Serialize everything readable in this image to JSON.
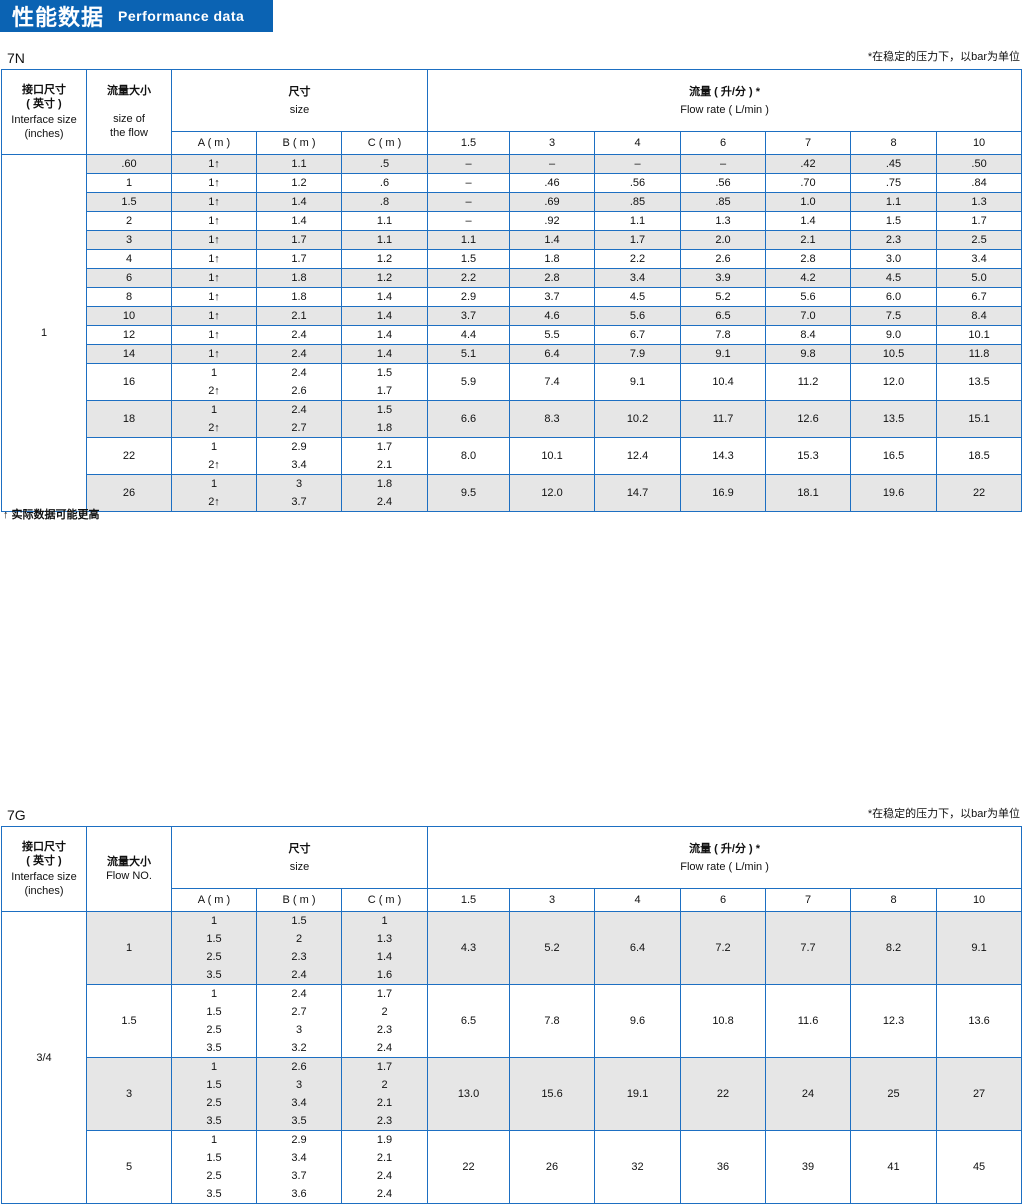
{
  "title": {
    "zh": "性能数据",
    "en": "Performance data"
  },
  "colors": {
    "accent": "#0b63b3",
    "border": "#1d6fc2",
    "stripe": "#e6e6e6"
  },
  "pressure_note": "*在稳定的压力下，以bar为单位",
  "footnote": "↑ 实际数据可能更高",
  "tables": [
    {
      "model": "7N",
      "headers": {
        "interface_zh": "接口尺寸",
        "interface_zh2": "( 英寸 )",
        "interface_en": "Interface size",
        "interface_en2": "(inches)",
        "flow_zh": "流量大小",
        "flow_en": "size of",
        "flow_en2": "the flow",
        "size_zh": "尺寸",
        "size_en": "size",
        "rate_zh": "流量 ( 升/分 ) *",
        "rate_en": "Flow rate ( L/min )",
        "dims": [
          "A ( m )",
          "B ( m )",
          "C ( m )"
        ],
        "pressures": [
          "1.5",
          "3",
          "4",
          "6",
          "7",
          "8",
          "10"
        ]
      },
      "interface": "1",
      "rows": [
        {
          "flow": ".60",
          "a": [
            "1↑"
          ],
          "b": [
            "1.1"
          ],
          "c": [
            ".5"
          ],
          "rates": [
            "–",
            "–",
            "–",
            "–",
            ".42",
            ".45",
            ".50"
          ]
        },
        {
          "flow": "1",
          "a": [
            "1↑"
          ],
          "b": [
            "1.2"
          ],
          "c": [
            ".6"
          ],
          "rates": [
            "–",
            ".46",
            ".56",
            ".56",
            ".70",
            ".75",
            ".84"
          ]
        },
        {
          "flow": "1.5",
          "a": [
            "1↑"
          ],
          "b": [
            "1.4"
          ],
          "c": [
            ".8"
          ],
          "rates": [
            "–",
            ".69",
            ".85",
            ".85",
            "1.0",
            "1.1",
            "1.3"
          ]
        },
        {
          "flow": "2",
          "a": [
            "1↑"
          ],
          "b": [
            "1.4"
          ],
          "c": [
            "1.1"
          ],
          "rates": [
            "–",
            ".92",
            "1.1",
            "1.3",
            "1.4",
            "1.5",
            "1.7"
          ]
        },
        {
          "flow": "3",
          "a": [
            "1↑"
          ],
          "b": [
            "1.7"
          ],
          "c": [
            "1.1"
          ],
          "rates": [
            "1.1",
            "1.4",
            "1.7",
            "2.0",
            "2.1",
            "2.3",
            "2.5"
          ]
        },
        {
          "flow": "4",
          "a": [
            "1↑"
          ],
          "b": [
            "1.7"
          ],
          "c": [
            "1.2"
          ],
          "rates": [
            "1.5",
            "1.8",
            "2.2",
            "2.6",
            "2.8",
            "3.0",
            "3.4"
          ]
        },
        {
          "flow": "6",
          "a": [
            "1↑"
          ],
          "b": [
            "1.8"
          ],
          "c": [
            "1.2"
          ],
          "rates": [
            "2.2",
            "2.8",
            "3.4",
            "3.9",
            "4.2",
            "4.5",
            "5.0"
          ]
        },
        {
          "flow": "8",
          "a": [
            "1↑"
          ],
          "b": [
            "1.8"
          ],
          "c": [
            "1.4"
          ],
          "rates": [
            "2.9",
            "3.7",
            "4.5",
            "5.2",
            "5.6",
            "6.0",
            "6.7"
          ]
        },
        {
          "flow": "10",
          "a": [
            "1↑"
          ],
          "b": [
            "2.1"
          ],
          "c": [
            "1.4"
          ],
          "rates": [
            "3.7",
            "4.6",
            "5.6",
            "6.5",
            "7.0",
            "7.5",
            "8.4"
          ]
        },
        {
          "flow": "12",
          "a": [
            "1↑"
          ],
          "b": [
            "2.4"
          ],
          "c": [
            "1.4"
          ],
          "rates": [
            "4.4",
            "5.5",
            "6.7",
            "7.8",
            "8.4",
            "9.0",
            "10.1"
          ]
        },
        {
          "flow": "14",
          "a": [
            "1↑"
          ],
          "b": [
            "2.4"
          ],
          "c": [
            "1.4"
          ],
          "rates": [
            "5.1",
            "6.4",
            "7.9",
            "9.1",
            "9.8",
            "10.5",
            "11.8"
          ]
        },
        {
          "flow": "16",
          "a": [
            "1",
            "2↑"
          ],
          "b": [
            "2.4",
            "2.6"
          ],
          "c": [
            "1.5",
            "1.7"
          ],
          "rates": [
            "5.9",
            "7.4",
            "9.1",
            "10.4",
            "11.2",
            "12.0",
            "13.5"
          ]
        },
        {
          "flow": "18",
          "a": [
            "1",
            "2↑"
          ],
          "b": [
            "2.4",
            "2.7"
          ],
          "c": [
            "1.5",
            "1.8"
          ],
          "rates": [
            "6.6",
            "8.3",
            "10.2",
            "11.7",
            "12.6",
            "13.5",
            "15.1"
          ]
        },
        {
          "flow": "22",
          "a": [
            "1",
            "2↑"
          ],
          "b": [
            "2.9",
            "3.4"
          ],
          "c": [
            "1.7",
            "2.1"
          ],
          "rates": [
            "8.0",
            "10.1",
            "12.4",
            "14.3",
            "15.3",
            "16.5",
            "18.5"
          ]
        },
        {
          "flow": "26",
          "a": [
            "1",
            "2↑"
          ],
          "b": [
            "3",
            "3.7"
          ],
          "c": [
            "1.8",
            "2.4"
          ],
          "rates": [
            "9.5",
            "12.0",
            "14.7",
            "16.9",
            "18.1",
            "19.6",
            "22"
          ]
        }
      ]
    },
    {
      "model": "7G",
      "headers": {
        "interface_zh": "接口尺寸",
        "interface_zh2": "( 英寸 )",
        "interface_en": "Interface size",
        "interface_en2": "(inches)",
        "flow_zh": "流量大小",
        "flow_en": "Flow NO.",
        "flow_en2": "",
        "size_zh": "尺寸",
        "size_en": "size",
        "rate_zh": "流量 ( 升/分 ) *",
        "rate_en": "Flow rate ( L/min )",
        "dims": [
          "A ( m )",
          "B ( m )",
          "C ( m )"
        ],
        "pressures": [
          "1.5",
          "3",
          "4",
          "6",
          "7",
          "8",
          "10"
        ]
      },
      "interface": "3/4",
      "rows": [
        {
          "flow": "1",
          "a": [
            "1",
            "1.5",
            "2.5",
            "3.5"
          ],
          "b": [
            "1.5",
            "2",
            "2.3",
            "2.4"
          ],
          "c": [
            "1",
            "1.3",
            "1.4",
            "1.6"
          ],
          "rates": [
            "4.3",
            "5.2",
            "6.4",
            "7.2",
            "7.7",
            "8.2",
            "9.1"
          ]
        },
        {
          "flow": "1.5",
          "a": [
            "1",
            "1.5",
            "2.5",
            "3.5"
          ],
          "b": [
            "2.4",
            "2.7",
            "3",
            "3.2"
          ],
          "c": [
            "1.7",
            "2",
            "2.3",
            "2.4"
          ],
          "rates": [
            "6.5",
            "7.8",
            "9.6",
            "10.8",
            "11.6",
            "12.3",
            "13.6"
          ]
        },
        {
          "flow": "3",
          "a": [
            "1",
            "1.5",
            "2.5",
            "3.5"
          ],
          "b": [
            "2.6",
            "3",
            "3.4",
            "3.5"
          ],
          "c": [
            "1.7",
            "2",
            "2.1",
            "2.3"
          ],
          "rates": [
            "13.0",
            "15.6",
            "19.1",
            "22",
            "24",
            "25",
            "27"
          ]
        },
        {
          "flow": "5",
          "a": [
            "1",
            "1.5",
            "2.5",
            "3.5"
          ],
          "b": [
            "2.9",
            "3.4",
            "3.7",
            "3.6"
          ],
          "c": [
            "1.9",
            "2.1",
            "2.4",
            "2.4"
          ],
          "rates": [
            "22",
            "26",
            "32",
            "36",
            "39",
            "41",
            "45"
          ]
        }
      ]
    }
  ]
}
